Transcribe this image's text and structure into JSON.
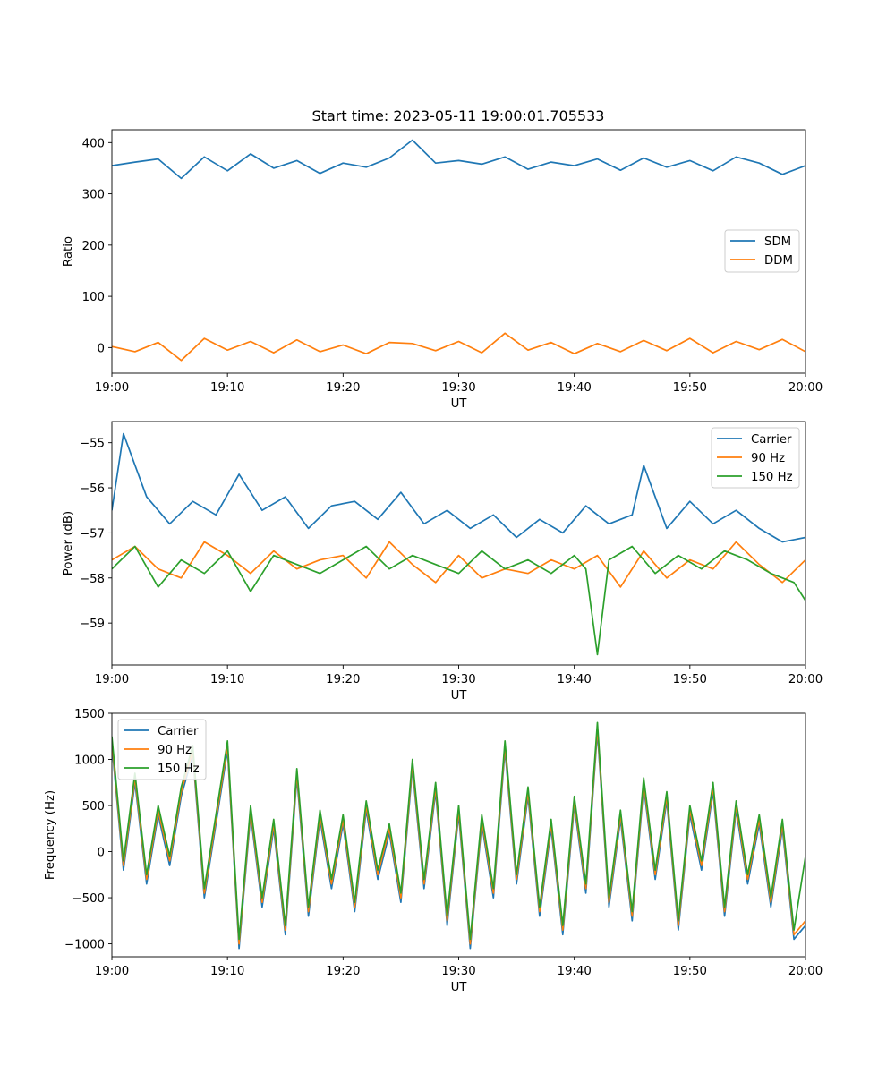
{
  "figure": {
    "title": "Start time: 2023-05-11 19:00:01.705533"
  },
  "chart_data": [
    {
      "type": "line",
      "title": "Start time: 2023-05-11 19:00:01.705533",
      "xlabel": "UT",
      "ylabel": "Ratio",
      "xlim": [
        "19:00",
        "20:00"
      ],
      "ylim": [
        -50,
        425
      ],
      "xticks": [
        "19:00",
        "19:10",
        "19:20",
        "19:30",
        "19:40",
        "19:50",
        "20:00"
      ],
      "yticks": [
        0,
        100,
        200,
        300,
        400
      ],
      "ytick_labels": [
        "0",
        "100",
        "200",
        "300",
        "400"
      ],
      "grid": false,
      "legend": "center-right",
      "series": [
        {
          "name": "SDM",
          "color": "#1f77b4",
          "x": [
            "19:00",
            "19:02",
            "19:04",
            "19:06",
            "19:08",
            "19:10",
            "19:12",
            "19:14",
            "19:16",
            "19:18",
            "19:20",
            "19:22",
            "19:24",
            "19:26",
            "19:28",
            "19:30",
            "19:32",
            "19:34",
            "19:36",
            "19:38",
            "19:40",
            "19:42",
            "19:44",
            "19:46",
            "19:48",
            "19:50",
            "19:52",
            "19:54",
            "19:56",
            "19:58",
            "20:00"
          ],
          "values": [
            355,
            362,
            368,
            330,
            372,
            345,
            378,
            350,
            365,
            340,
            360,
            352,
            370,
            405,
            360,
            365,
            358,
            372,
            348,
            362,
            355,
            368,
            346,
            370,
            352,
            365,
            345,
            372,
            360,
            338,
            355
          ]
        },
        {
          "name": "DDM",
          "color": "#ff7f0e",
          "x": [
            "19:00",
            "19:02",
            "19:04",
            "19:06",
            "19:08",
            "19:10",
            "19:12",
            "19:14",
            "19:16",
            "19:18",
            "19:20",
            "19:22",
            "19:24",
            "19:26",
            "19:28",
            "19:30",
            "19:32",
            "19:34",
            "19:36",
            "19:38",
            "19:40",
            "19:42",
            "19:44",
            "19:46",
            "19:48",
            "19:50",
            "19:52",
            "19:54",
            "19:56",
            "19:58",
            "20:00"
          ],
          "values": [
            2,
            -8,
            10,
            -25,
            18,
            -5,
            12,
            -10,
            15,
            -8,
            5,
            -12,
            10,
            8,
            -6,
            12,
            -10,
            28,
            -5,
            10,
            -12,
            8,
            -8,
            14,
            -6,
            18,
            -10,
            12,
            -4,
            16,
            -8
          ]
        }
      ]
    },
    {
      "type": "line",
      "title": "",
      "xlabel": "UT",
      "ylabel": "Power (dB)",
      "xlim": [
        "19:00",
        "20:00"
      ],
      "ylim": [
        -59.93,
        -54.53
      ],
      "xticks": [
        "19:00",
        "19:10",
        "19:20",
        "19:30",
        "19:40",
        "19:50",
        "20:00"
      ],
      "yticks": [
        -59,
        -58,
        -57,
        -56,
        -55
      ],
      "ytick_labels": [
        "−59",
        "−58",
        "−57",
        "−56",
        "−55"
      ],
      "grid": false,
      "legend": "top-right",
      "series": [
        {
          "name": "Carrier",
          "color": "#1f77b4",
          "x": [
            "19:00",
            "19:01",
            "19:03",
            "19:05",
            "19:07",
            "19:09",
            "19:11",
            "19:13",
            "19:15",
            "19:17",
            "19:19",
            "19:21",
            "19:23",
            "19:25",
            "19:27",
            "19:29",
            "19:31",
            "19:33",
            "19:35",
            "19:37",
            "19:39",
            "19:41",
            "19:43",
            "19:45",
            "19:46",
            "19:48",
            "19:50",
            "19:52",
            "19:54",
            "19:56",
            "19:58",
            "20:00"
          ],
          "values": [
            -56.5,
            -54.8,
            -56.2,
            -56.8,
            -56.3,
            -56.6,
            -55.7,
            -56.5,
            -56.2,
            -56.9,
            -56.4,
            -56.3,
            -56.7,
            -56.1,
            -56.8,
            -56.5,
            -56.9,
            -56.6,
            -57.1,
            -56.7,
            -57.0,
            -56.4,
            -56.8,
            -56.6,
            -55.5,
            -56.9,
            -56.3,
            -56.8,
            -56.5,
            -56.9,
            -57.2,
            -57.1
          ]
        },
        {
          "name": "90 Hz",
          "color": "#ff7f0e",
          "x": [
            "19:00",
            "19:02",
            "19:04",
            "19:06",
            "19:08",
            "19:10",
            "19:12",
            "19:14",
            "19:16",
            "19:18",
            "19:20",
            "19:22",
            "19:24",
            "19:26",
            "19:28",
            "19:30",
            "19:32",
            "19:34",
            "19:36",
            "19:38",
            "19:40",
            "19:42",
            "19:44",
            "19:46",
            "19:48",
            "19:50",
            "19:52",
            "19:54",
            "19:56",
            "19:58",
            "20:00"
          ],
          "values": [
            -57.6,
            -57.3,
            -57.8,
            -58.0,
            -57.2,
            -57.5,
            -57.9,
            -57.4,
            -57.8,
            -57.6,
            -57.5,
            -58.0,
            -57.2,
            -57.7,
            -58.1,
            -57.5,
            -58.0,
            -57.8,
            -57.9,
            -57.6,
            -57.8,
            -57.5,
            -58.2,
            -57.4,
            -58.0,
            -57.6,
            -57.8,
            -57.2,
            -57.7,
            -58.1,
            -57.6
          ]
        },
        {
          "name": "150 Hz",
          "color": "#2ca02c",
          "x": [
            "19:00",
            "19:02",
            "19:04",
            "19:06",
            "19:08",
            "19:10",
            "19:12",
            "19:14",
            "19:16",
            "19:18",
            "19:20",
            "19:22",
            "19:24",
            "19:26",
            "19:28",
            "19:30",
            "19:32",
            "19:34",
            "19:36",
            "19:38",
            "19:40",
            "19:41",
            "19:42",
            "19:43",
            "19:45",
            "19:47",
            "19:49",
            "19:51",
            "19:53",
            "19:55",
            "19:57",
            "19:59",
            "20:00"
          ],
          "values": [
            -57.8,
            -57.3,
            -58.2,
            -57.6,
            -57.9,
            -57.4,
            -58.3,
            -57.5,
            -57.7,
            -57.9,
            -57.6,
            -57.3,
            -57.8,
            -57.5,
            -57.7,
            -57.9,
            -57.4,
            -57.8,
            -57.6,
            -57.9,
            -57.5,
            -57.8,
            -59.7,
            -57.6,
            -57.3,
            -57.9,
            -57.5,
            -57.8,
            -57.4,
            -57.6,
            -57.9,
            -58.1,
            -58.5
          ]
        }
      ]
    },
    {
      "type": "line",
      "title": "",
      "xlabel": "UT",
      "ylabel": "Frequency (Hz)",
      "xlim": [
        "19:00",
        "20:00"
      ],
      "ylim": [
        -1140,
        1500
      ],
      "xticks": [
        "19:00",
        "19:10",
        "19:20",
        "19:30",
        "19:40",
        "19:50",
        "20:00"
      ],
      "yticks": [
        -1000,
        -500,
        0,
        500,
        1000,
        1500
      ],
      "ytick_labels": [
        "−1000",
        "−500",
        "0",
        "500",
        "1000",
        "1500"
      ],
      "grid": false,
      "legend": "top-left",
      "series": [
        {
          "name": "Carrier",
          "color": "#1f77b4",
          "x": [
            "19:00",
            "19:01",
            "19:02",
            "19:03",
            "19:04",
            "19:05",
            "19:06",
            "19:07",
            "19:08",
            "19:09",
            "19:10",
            "19:11",
            "19:12",
            "19:13",
            "19:14",
            "19:15",
            "19:16",
            "19:17",
            "19:18",
            "19:19",
            "19:20",
            "19:21",
            "19:22",
            "19:23",
            "19:24",
            "19:25",
            "19:26",
            "19:27",
            "19:28",
            "19:29",
            "19:30",
            "19:31",
            "19:32",
            "19:33",
            "19:34",
            "19:35",
            "19:36",
            "19:37",
            "19:38",
            "19:39",
            "19:40",
            "19:41",
            "19:42",
            "19:43",
            "19:44",
            "19:45",
            "19:46",
            "19:47",
            "19:48",
            "19:49",
            "19:50",
            "19:51",
            "19:52",
            "19:53",
            "19:54",
            "19:55",
            "19:56",
            "19:57",
            "19:58",
            "19:59",
            "20:00"
          ],
          "values": [
            1150,
            -200,
            750,
            -350,
            400,
            -150,
            600,
            1050,
            -500,
            300,
            1100,
            -1050,
            400,
            -600,
            250,
            -900,
            800,
            -700,
            350,
            -400,
            300,
            -650,
            450,
            -300,
            200,
            -550,
            900,
            -400,
            650,
            -800,
            400,
            -1050,
            300,
            -500,
            1100,
            -350,
            600,
            -700,
            250,
            -900,
            500,
            -450,
            1300,
            -600,
            350,
            -750,
            700,
            -300,
            550,
            -850,
            400,
            -200,
            650,
            -700,
            450,
            -350,
            300,
            -600,
            250,
            -950,
            -800
          ]
        },
        {
          "name": "90 Hz",
          "color": "#ff7f0e",
          "x": [
            "19:00",
            "19:01",
            "19:02",
            "19:03",
            "19:04",
            "19:05",
            "19:06",
            "19:07",
            "19:08",
            "19:09",
            "19:10",
            "19:11",
            "19:12",
            "19:13",
            "19:14",
            "19:15",
            "19:16",
            "19:17",
            "19:18",
            "19:19",
            "19:20",
            "19:21",
            "19:22",
            "19:23",
            "19:24",
            "19:25",
            "19:26",
            "19:27",
            "19:28",
            "19:29",
            "19:30",
            "19:31",
            "19:32",
            "19:33",
            "19:34",
            "19:35",
            "19:36",
            "19:37",
            "19:38",
            "19:39",
            "19:40",
            "19:41",
            "19:42",
            "19:43",
            "19:44",
            "19:45",
            "19:46",
            "19:47",
            "19:48",
            "19:49",
            "19:50",
            "19:51",
            "19:52",
            "19:53",
            "19:54",
            "19:55",
            "19:56",
            "19:57",
            "19:58",
            "19:59",
            "20:00"
          ],
          "values": [
            1200,
            -150,
            800,
            -300,
            450,
            -100,
            650,
            1100,
            -450,
            350,
            1150,
            -1000,
            450,
            -550,
            300,
            -850,
            850,
            -650,
            400,
            -350,
            350,
            -600,
            500,
            -250,
            250,
            -500,
            950,
            -350,
            700,
            -750,
            450,
            -1000,
            350,
            -450,
            1150,
            -300,
            650,
            -650,
            300,
            -850,
            550,
            -400,
            1350,
            -550,
            400,
            -700,
            750,
            -250,
            600,
            -800,
            450,
            -150,
            700,
            -650,
            500,
            -300,
            350,
            -550,
            300,
            -900,
            -750
          ]
        },
        {
          "name": "150 Hz",
          "color": "#2ca02c",
          "x": [
            "19:00",
            "19:01",
            "19:02",
            "19:03",
            "19:04",
            "19:05",
            "19:06",
            "19:07",
            "19:08",
            "19:09",
            "19:10",
            "19:11",
            "19:12",
            "19:13",
            "19:14",
            "19:15",
            "19:16",
            "19:17",
            "19:18",
            "19:19",
            "19:20",
            "19:21",
            "19:22",
            "19:23",
            "19:24",
            "19:25",
            "19:26",
            "19:27",
            "19:28",
            "19:29",
            "19:30",
            "19:31",
            "19:32",
            "19:33",
            "19:34",
            "19:35",
            "19:36",
            "19:37",
            "19:38",
            "19:39",
            "19:40",
            "19:41",
            "19:42",
            "19:43",
            "19:44",
            "19:45",
            "19:46",
            "19:47",
            "19:48",
            "19:49",
            "19:50",
            "19:51",
            "19:52",
            "19:53",
            "19:54",
            "19:55",
            "19:56",
            "19:57",
            "19:58",
            "19:59",
            "20:00"
          ],
          "values": [
            1250,
            -100,
            850,
            -250,
            500,
            -50,
            700,
            1150,
            -400,
            400,
            1200,
            -950,
            500,
            -500,
            350,
            -800,
            900,
            -600,
            450,
            -300,
            400,
            -550,
            550,
            -200,
            300,
            -450,
            1000,
            -300,
            750,
            -700,
            500,
            -950,
            400,
            -400,
            1200,
            -250,
            700,
            -600,
            350,
            -800,
            600,
            -350,
            1400,
            -500,
            450,
            -650,
            800,
            -200,
            650,
            -750,
            500,
            -100,
            750,
            -600,
            550,
            -250,
            400,
            -500,
            350,
            -850,
            -50
          ]
        }
      ]
    }
  ]
}
